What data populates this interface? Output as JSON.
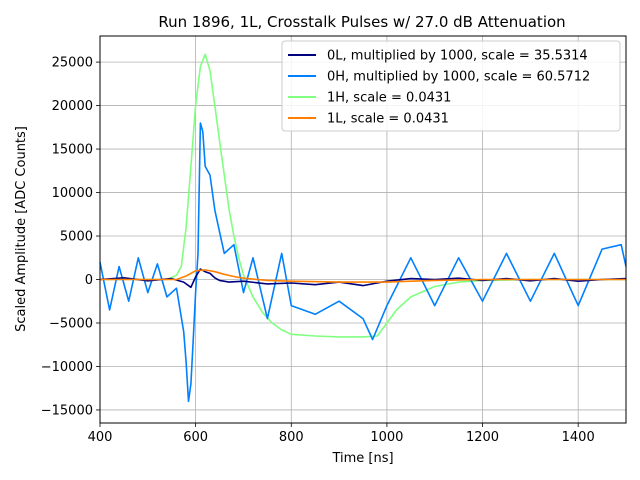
{
  "chart_data": {
    "type": "line",
    "title": "Run 1896, 1L, Crosstalk Pulses w/ 27.0 dB Attenuation",
    "xlabel": "Time [ns]",
    "ylabel": "Scaled Amplitude [ADC Counts]",
    "xlim": [
      400,
      1500
    ],
    "ylim": [
      -16500,
      28000
    ],
    "xticks": [
      400,
      600,
      800,
      1000,
      1200,
      1400
    ],
    "yticks": [
      -15000,
      -10000,
      -5000,
      0,
      5000,
      10000,
      15000,
      20000,
      25000
    ],
    "grid": true,
    "legend_position": "top-right",
    "series": [
      {
        "name": "0L, multiplied by 1000,  scale = 35.5314",
        "color": "#00007f",
        "x": [
          400,
          450,
          500,
          550,
          575,
          590,
          600,
          610,
          620,
          630,
          640,
          650,
          670,
          700,
          750,
          800,
          850,
          900,
          950,
          1000,
          1050,
          1100,
          1150,
          1200,
          1250,
          1300,
          1350,
          1400,
          1450,
          1500
        ],
        "y": [
          0,
          200,
          -150,
          100,
          -300,
          -900,
          300,
          1200,
          900,
          700,
          200,
          -100,
          -300,
          -200,
          -500,
          -400,
          -600,
          -300,
          -700,
          -200,
          100,
          0,
          150,
          -100,
          100,
          -150,
          100,
          -200,
          0,
          100
        ]
      },
      {
        "name": "0H, multiplied by 1000,  scale = 60.5712",
        "color": "#0080ff",
        "x": [
          400,
          420,
          440,
          460,
          480,
          500,
          520,
          540,
          560,
          575,
          580,
          585,
          590,
          595,
          600,
          605,
          610,
          615,
          620,
          630,
          640,
          650,
          660,
          680,
          700,
          720,
          750,
          780,
          800,
          850,
          900,
          950,
          970,
          1000,
          1050,
          1100,
          1150,
          1200,
          1250,
          1300,
          1350,
          1400,
          1450,
          1490,
          1500
        ],
        "y": [
          2000,
          -3500,
          1500,
          -2500,
          2500,
          -1500,
          1800,
          -2000,
          -1000,
          -6000,
          -9500,
          -14000,
          -12000,
          -7000,
          -1500,
          3000,
          18000,
          17000,
          13000,
          12000,
          8000,
          5500,
          3000,
          4000,
          -1500,
          2500,
          -4500,
          3000,
          -3000,
          -4000,
          -2500,
          -4500,
          -6900,
          -3000,
          2500,
          -3000,
          2500,
          -2500,
          3000,
          -2500,
          3000,
          -3000,
          3500,
          4000,
          1500
        ]
      },
      {
        "name": "1H,  scale = 0.0431",
        "color": "#80ff80",
        "x": [
          400,
          540,
          560,
          570,
          580,
          590,
          600,
          610,
          620,
          630,
          640,
          650,
          660,
          670,
          680,
          690,
          700,
          720,
          740,
          760,
          780,
          800,
          850,
          900,
          950,
          980,
          1000,
          1020,
          1050,
          1100,
          1150,
          1200,
          1300,
          1500
        ],
        "y": [
          0,
          0,
          500,
          1500,
          6000,
          13000,
          20000,
          24500,
          25900,
          24000,
          20000,
          16000,
          12000,
          8000,
          5000,
          2500,
          500,
          -2000,
          -3800,
          -5000,
          -5800,
          -6300,
          -6500,
          -6600,
          -6600,
          -6500,
          -5000,
          -3500,
          -2000,
          -800,
          -300,
          -100,
          0,
          0
        ]
      },
      {
        "name": "1L,  scale = 0.0431",
        "color": "#ff8000",
        "x": [
          400,
          560,
          580,
          600,
          620,
          640,
          660,
          680,
          700,
          750,
          800,
          900,
          1000,
          1050,
          1100,
          1200,
          1500
        ],
        "y": [
          0,
          0,
          400,
          1000,
          1100,
          900,
          600,
          350,
          150,
          -100,
          -200,
          -300,
          -300,
          -200,
          -100,
          0,
          0
        ]
      }
    ]
  }
}
